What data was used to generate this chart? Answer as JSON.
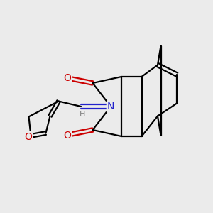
{
  "bg_color": "#ebebeb",
  "atom_colors": {
    "C": "#000000",
    "N": "#2222cc",
    "O": "#cc0000",
    "H": "#808080"
  },
  "bond_color": "#000000",
  "bond_width": 1.6,
  "figsize": [
    3.0,
    3.0
  ],
  "dpi": 100,
  "xlim": [
    0,
    10
  ],
  "ylim": [
    0,
    10
  ]
}
